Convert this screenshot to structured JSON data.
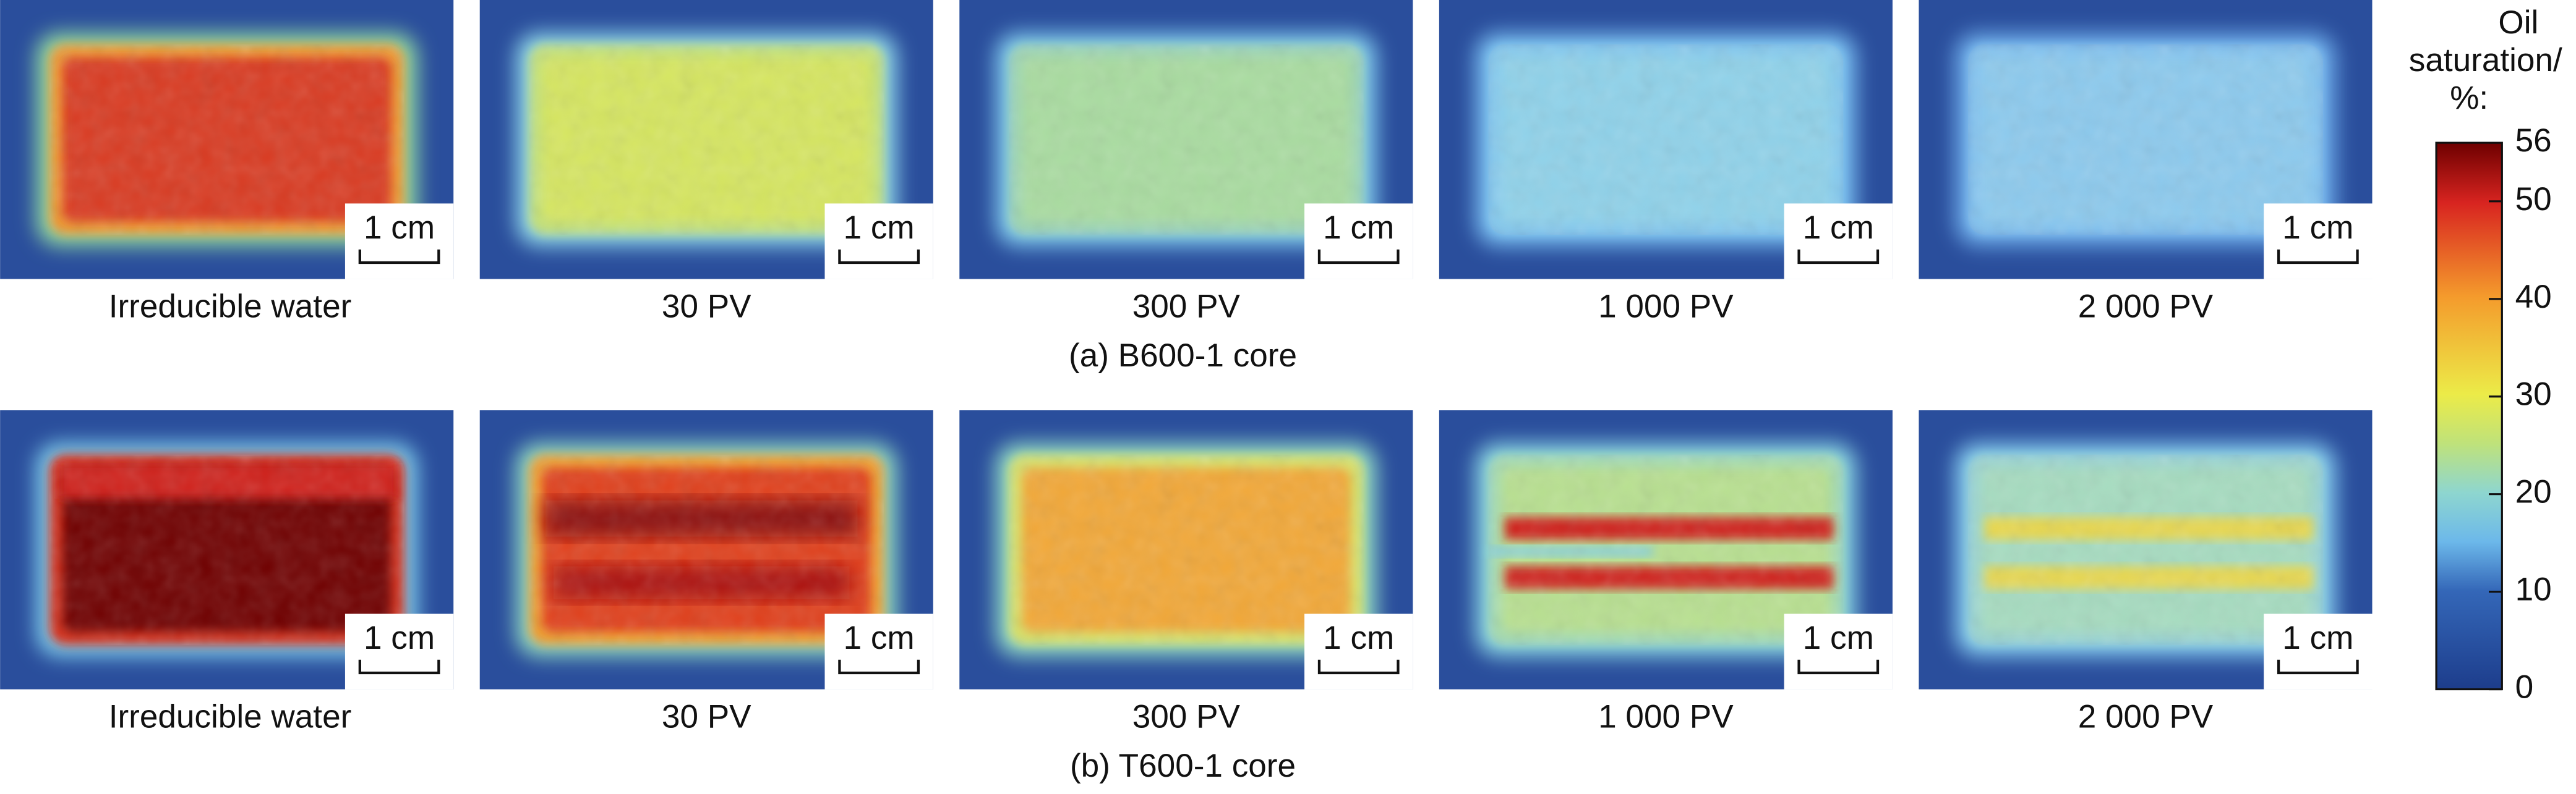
{
  "colorbar": {
    "title": [
      "Oil",
      "saturation/",
      "%:"
    ],
    "lim": [
      0,
      56
    ],
    "ticks": [
      0,
      10,
      20,
      30,
      40,
      50,
      56
    ]
  },
  "scale_bar": "1 cm",
  "rows": [
    {
      "caption": "(a) B600-1 core",
      "panels": [
        "Irreducible water",
        "30 PV",
        "300 PV",
        "1 000 PV",
        "2 000 PV"
      ]
    },
    {
      "caption": "(b) T600-1 core",
      "panels": [
        "Irreducible water",
        "30 PV",
        "300 PV",
        "1 000 PV",
        "2 000 PV"
      ]
    }
  ]
}
